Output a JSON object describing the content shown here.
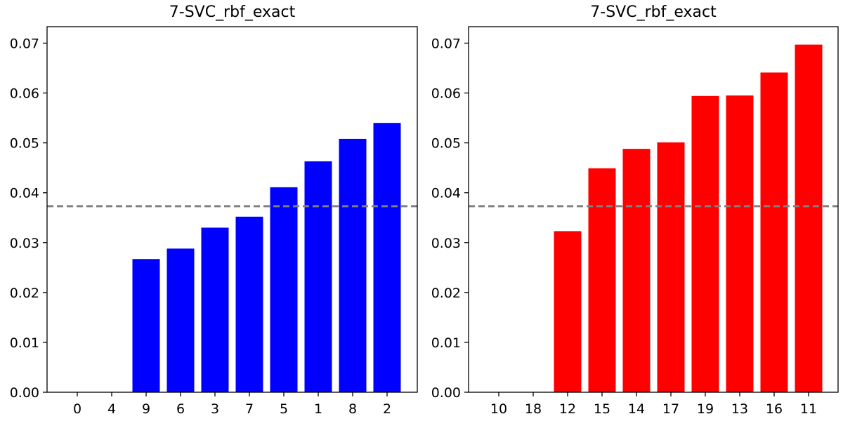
{
  "chart_data": [
    {
      "type": "bar",
      "title": "7-SVC_rbf_exact",
      "xlabel": "",
      "ylabel": "",
      "categories": [
        "0",
        "4",
        "9",
        "6",
        "3",
        "7",
        "5",
        "1",
        "8",
        "2"
      ],
      "values": [
        0.0,
        0.0,
        0.0267,
        0.0288,
        0.033,
        0.0352,
        0.0411,
        0.0463,
        0.0508,
        0.054
      ],
      "bar_color": "#0000ff",
      "ylim": [
        0,
        0.0733
      ],
      "yticks": [
        0,
        0.01,
        0.02,
        0.03,
        0.04,
        0.05,
        0.06,
        0.07
      ],
      "ytick_labels": [
        "0.00",
        "0.01",
        "0.02",
        "0.03",
        "0.04",
        "0.05",
        "0.06",
        "0.07"
      ],
      "reference_line": {
        "value": 0.0373,
        "color": "#808080",
        "style": "dashed"
      },
      "grid": false,
      "legend": "none"
    },
    {
      "type": "bar",
      "title": "7-SVC_rbf_exact",
      "xlabel": "",
      "ylabel": "",
      "categories": [
        "10",
        "18",
        "12",
        "15",
        "14",
        "17",
        "19",
        "13",
        "16",
        "11"
      ],
      "values": [
        0.0,
        0.0,
        0.0323,
        0.0449,
        0.0488,
        0.0501,
        0.0594,
        0.0595,
        0.0641,
        0.0697
      ],
      "bar_color": "#ff0000",
      "ylim": [
        0,
        0.0733
      ],
      "yticks": [
        0,
        0.01,
        0.02,
        0.03,
        0.04,
        0.05,
        0.06,
        0.07
      ],
      "ytick_labels": [
        "0.00",
        "0.01",
        "0.02",
        "0.03",
        "0.04",
        "0.05",
        "0.06",
        "0.07"
      ],
      "reference_line": {
        "value": 0.0373,
        "color": "#808080",
        "style": "dashed"
      },
      "grid": false,
      "legend": "none"
    }
  ]
}
